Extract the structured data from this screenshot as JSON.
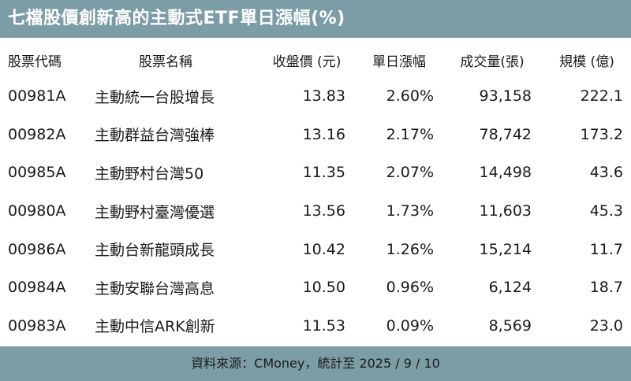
{
  "title": "七檔股價創新高的主動式ETF單日漲幅(%)",
  "columns": {
    "code": "股票代碼",
    "name": "股票名稱",
    "close": "收盤價 (元)",
    "change": "單日漲幅",
    "volume": "成交量(張)",
    "scale": "規模 (億)"
  },
  "rows": [
    {
      "code": "00981A",
      "name": "主動統一台股增長",
      "close": "13.83",
      "change": "2.60%",
      "volume": "93,158",
      "scale": "222.1"
    },
    {
      "code": "00982A",
      "name": "主動群益台灣強棒",
      "close": "13.16",
      "change": "2.17%",
      "volume": "78,742",
      "scale": "173.2"
    },
    {
      "code": "00985A",
      "name": "主動野村台灣50",
      "close": "11.35",
      "change": "2.07%",
      "volume": "14,498",
      "scale": "43.6"
    },
    {
      "code": "00980A",
      "name": "主動野村臺灣優選",
      "close": "13.56",
      "change": "1.73%",
      "volume": "11,603",
      "scale": "45.3"
    },
    {
      "code": "00986A",
      "name": "主動台新龍頭成長",
      "close": "10.42",
      "change": "1.26%",
      "volume": "15,214",
      "scale": "11.7"
    },
    {
      "code": "00984A",
      "name": "主動安聯台灣高息",
      "close": "10.50",
      "change": "0.96%",
      "volume": "6,124",
      "scale": "18.7"
    },
    {
      "code": "00983A",
      "name": "主動中信ARK創新",
      "close": "11.53",
      "change": "0.09%",
      "volume": "8,569",
      "scale": "23.0"
    }
  ],
  "footer": "資料來源：CMoney，統計至 2025 / 9 / 10",
  "colors": {
    "bar_background": "#7d9da6",
    "title_text": "#ffffff",
    "body_text": "#1a1a1a"
  }
}
